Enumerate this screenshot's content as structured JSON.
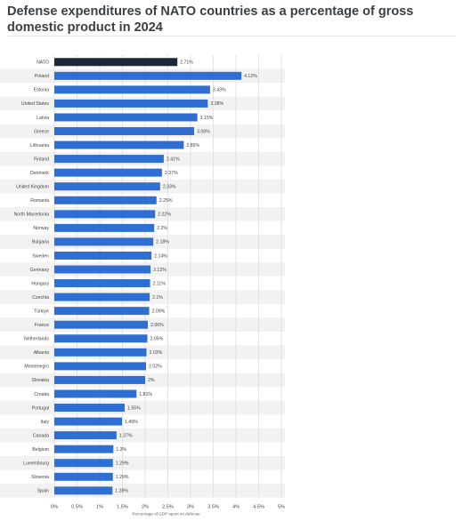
{
  "chart_data": {
    "type": "bar",
    "orientation": "horizontal",
    "title": "Defense expenditures of NATO countries as a percentage of gross domestic product in 2024",
    "xlabel": "Percentage of GDP spent on defense",
    "ylabel": "",
    "xlim": [
      0,
      5
    ],
    "x_ticks": [
      0,
      0.5,
      1,
      1.5,
      2,
      2.5,
      3,
      3.5,
      4,
      4.5,
      5
    ],
    "x_tick_labels": [
      "0%",
      "0.5%",
      "1%",
      "1.5%",
      "2%",
      "2.5%",
      "3%",
      "3.5%",
      "4%",
      "4.5%",
      "5%"
    ],
    "grid": true,
    "categories": [
      "NATO",
      "Poland",
      "Estonia",
      "United States",
      "Latvia",
      "Greece",
      "Lithuania",
      "Finland",
      "Denmark",
      "United Kingdom",
      "Romania",
      "North Macedonia",
      "Norway",
      "Bulgaria",
      "Sweden",
      "Germany",
      "Hungary",
      "Czechia",
      "Türkiye",
      "France",
      "Netherlands",
      "Albania",
      "Montenegro",
      "Slovakia",
      "Croatia",
      "Portugal",
      "Italy",
      "Canada",
      "Belgium",
      "Luxembourg",
      "Slovenia",
      "Spain"
    ],
    "values": [
      2.71,
      4.12,
      3.43,
      3.38,
      3.15,
      3.08,
      2.85,
      2.41,
      2.37,
      2.33,
      2.25,
      2.22,
      2.2,
      2.18,
      2.14,
      2.12,
      2.11,
      2.1,
      2.09,
      2.06,
      2.05,
      2.03,
      2.02,
      2,
      1.81,
      1.55,
      1.49,
      1.37,
      1.3,
      1.29,
      1.29,
      1.28
    ],
    "value_labels": [
      "2.71%",
      "4.12%",
      "3.43%",
      "3.38%",
      "3.15%",
      "3.08%",
      "2.85%",
      "2.41%",
      "2.37%",
      "2.33%",
      "2.25%",
      "2.22%",
      "2.2%",
      "2.18%",
      "2.14%",
      "2.12%",
      "2.11%",
      "2.1%",
      "2.09%",
      "2.06%",
      "2.05%",
      "2.03%",
      "2.02%",
      "2%",
      "1.81%",
      "1.55%",
      "1.49%",
      "1.37%",
      "1.3%",
      "1.29%",
      "1.29%",
      "1.28%"
    ],
    "highlight_category": "NATO"
  },
  "colors": {
    "bar": "#2f6fd3",
    "highlight_bar": "#1b2838",
    "row_band": "#f2f2f2",
    "grid": "#e3e3e3",
    "text": "#444444"
  }
}
